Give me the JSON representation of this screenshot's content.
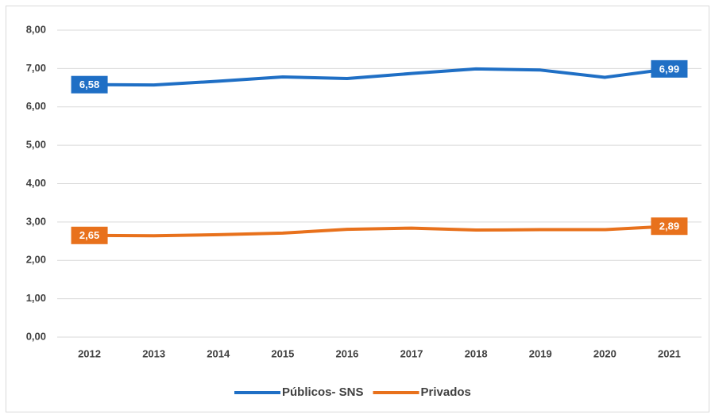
{
  "chart_data": {
    "type": "line",
    "categories": [
      "2012",
      "2013",
      "2014",
      "2015",
      "2016",
      "2017",
      "2018",
      "2019",
      "2020",
      "2021"
    ],
    "series": [
      {
        "name": "Públicos- SNS",
        "color": "#1f6fc5",
        "values": [
          6.58,
          6.57,
          6.67,
          6.78,
          6.74,
          6.87,
          6.99,
          6.96,
          6.77,
          6.99
        ],
        "value_labels": [
          "6,58",
          null,
          null,
          null,
          null,
          null,
          null,
          null,
          null,
          "6,99"
        ]
      },
      {
        "name": "Privados",
        "color": "#e8711c",
        "values": [
          2.65,
          2.64,
          2.67,
          2.71,
          2.81,
          2.84,
          2.79,
          2.8,
          2.8,
          2.89
        ],
        "value_labels": [
          "2,65",
          null,
          null,
          null,
          null,
          null,
          null,
          null,
          null,
          "2,89"
        ]
      }
    ],
    "ylim": [
      0,
      8
    ],
    "yticks": [
      {
        "value": 0,
        "label": "0,00"
      },
      {
        "value": 1,
        "label": "1,00"
      },
      {
        "value": 2,
        "label": "2,00"
      },
      {
        "value": 3,
        "label": "3,00"
      },
      {
        "value": 4,
        "label": "4,00"
      },
      {
        "value": 5,
        "label": "5,00"
      },
      {
        "value": 6,
        "label": "6,00"
      },
      {
        "value": 7,
        "label": "7,00"
      },
      {
        "value": 8,
        "label": "8,00"
      }
    ],
    "grid": true,
    "legend": "bottom"
  }
}
